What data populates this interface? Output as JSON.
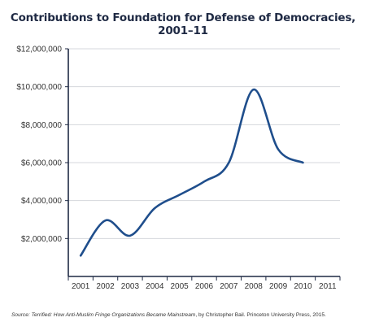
{
  "chart_data": {
    "type": "line",
    "title": "Contributions to Foundation for Defense of Democracies, 2001–11",
    "xlabel": "",
    "ylabel": "",
    "x_ticks": [
      "2001",
      "2002",
      "2003",
      "2004",
      "2005",
      "2006",
      "2007",
      "2008",
      "2009",
      "2010",
      "2011"
    ],
    "y_ticks": [
      "$2,000,000",
      "$4,000,000",
      "$6,000,000",
      "$8,000,000",
      "$10,000,000",
      "$12,000,000"
    ],
    "y_tick_values": [
      2000000,
      4000000,
      6000000,
      8000000,
      10000000,
      12000000
    ],
    "xlim": [
      2000.5,
      2011.5
    ],
    "ylim": [
      0,
      12000000
    ],
    "grid": "horizontal",
    "line_color": "#1f4e8c",
    "series": [
      {
        "x": [
          2001,
          2002,
          2003,
          2004,
          2005,
          2006,
          2007,
          2008,
          2009,
          2010
        ],
        "values": [
          1100000,
          2950000,
          2150000,
          3600000,
          4300000,
          5000000,
          6000000,
          9850000,
          6700000,
          6000000
        ]
      }
    ]
  },
  "source": {
    "prefix": "Source: ",
    "book_title": "Terrified: How Anti-Muslim Fringe Organizations Became Mainstream",
    "rest": ", by Christopher Bail. Princeton University Press, 2015."
  }
}
